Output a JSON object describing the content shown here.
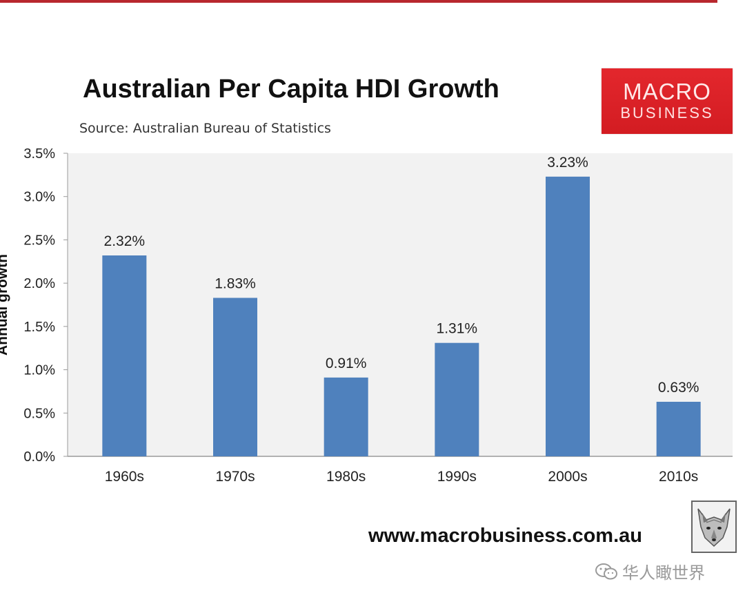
{
  "header": {
    "title": "Australian Per Capita HDI Growth",
    "source": "Source: Australian Bureau of Statistics"
  },
  "logo": {
    "line1": "MACRO",
    "line2": "BUSINESS"
  },
  "footer": {
    "website": "www.macrobusiness.com.au"
  },
  "watermark": {
    "text": "华人瞰世界"
  },
  "colors": {
    "bar": "#4f81bd",
    "plot_bg": "#f2f2f2",
    "logo_bg": "#d9252b",
    "accent_rule": "#b8282e"
  },
  "chart_data": {
    "type": "bar",
    "title": "Australian Per Capita HDI Growth",
    "subtitle": "Source: Australian Bureau of Statistics",
    "xlabel": "",
    "ylabel": "Annual growth",
    "categories": [
      "1960s",
      "1970s",
      "1980s",
      "1990s",
      "2000s",
      "2010s"
    ],
    "values": [
      2.32,
      1.83,
      0.91,
      1.31,
      3.23,
      0.63
    ],
    "value_labels": [
      "2.32%",
      "1.83%",
      "0.91%",
      "1.31%",
      "3.23%",
      "0.63%"
    ],
    "ylim": [
      0,
      3.5
    ],
    "yticks": [
      0,
      0.5,
      1.0,
      1.5,
      2.0,
      2.5,
      3.0,
      3.5
    ],
    "ytick_labels": [
      "0.0%",
      "0.5%",
      "1.0%",
      "1.5%",
      "2.0%",
      "2.5%",
      "3.0%",
      "3.5%"
    ],
    "grid": false,
    "legend": "none"
  }
}
